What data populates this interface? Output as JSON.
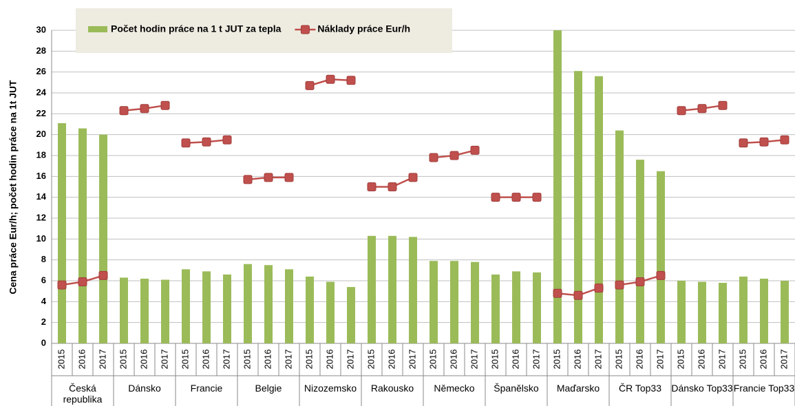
{
  "chart_data": {
    "type": "combo",
    "y_label": "Cena práce Eur/h; počet hodin práce na 1t JUT",
    "categories": [
      "2015",
      "2016",
      "2017",
      "2015",
      "2016",
      "2017",
      "2015",
      "2016",
      "2017",
      "2015",
      "2016",
      "2017",
      "2015",
      "2016",
      "2017",
      "2015",
      "2016",
      "2017",
      "2015",
      "2016",
      "2017",
      "2015",
      "2016",
      "2017",
      "2015",
      "2016",
      "2017",
      "2015",
      "2016",
      "2017",
      "2015",
      "2016",
      "2017",
      "2015",
      "2016",
      "2017"
    ],
    "category_groups": [
      "Česká republika",
      "Dánsko",
      "Francie",
      "Belgie",
      "Nizozemsko",
      "Rakousko",
      "Německo",
      "Španělsko",
      "Maďarsko",
      "ČR Top33",
      "Dánsko Top33",
      "Francie Top33"
    ],
    "series": [
      {
        "name": "Počet hodin práce na 1 t JUT za tepla",
        "type": "bar",
        "color": "#9bbb59",
        "values": [
          21.1,
          20.6,
          20.0,
          6.3,
          6.2,
          6.1,
          7.1,
          6.9,
          6.6,
          7.6,
          7.5,
          7.1,
          6.4,
          5.9,
          5.4,
          10.3,
          10.3,
          10.2,
          7.9,
          7.9,
          7.8,
          6.6,
          6.9,
          6.8,
          30,
          26.1,
          25.6,
          20.4,
          17.6,
          16.5,
          6.0,
          5.9,
          5.8,
          6.4,
          6.2,
          6.0
        ]
      },
      {
        "name": "Náklady práce Eur/h",
        "type": "line",
        "color": "#c0504d",
        "values": [
          5.6,
          5.9,
          6.5,
          22.3,
          22.5,
          22.8,
          19.2,
          19.3,
          19.5,
          15.7,
          15.9,
          15.9,
          24.7,
          25.3,
          25.2,
          15.0,
          15.0,
          15.9,
          17.8,
          18.0,
          18.5,
          14.0,
          14.0,
          14.0,
          4.8,
          4.6,
          5.3,
          5.6,
          5.9,
          6.5,
          22.3,
          22.5,
          22.8,
          19.2,
          19.3,
          19.5
        ]
      }
    ],
    "ylim": [
      0,
      30
    ],
    "yticks": [
      0,
      2,
      4,
      6,
      8,
      10,
      12,
      14,
      16,
      18,
      20,
      22,
      24,
      26,
      28,
      30
    ],
    "grid": true
  }
}
